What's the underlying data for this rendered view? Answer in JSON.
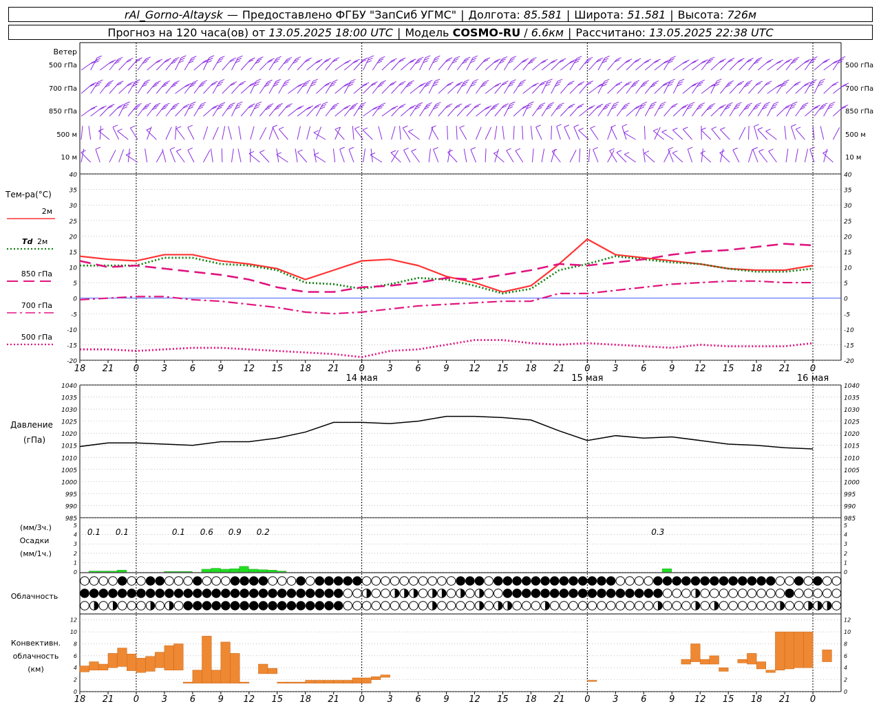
{
  "header": {
    "station": "rAl_Gorno-Altaysk",
    "dash": "—",
    "provider": "Предоставлено ФГБУ \"ЗапСиб УГМС\"",
    "lon_label": "Долгота:",
    "lon_value": "85.581",
    "lat_label": "Широта:",
    "lat_value": "51.581",
    "alt_label": "Высота:",
    "alt_value": "726м",
    "forecast_label": "Прогноз на 120 часа(ов)",
    "from_label": "от",
    "forecast_start": "13.05.2025 18:00 UTC",
    "model_label": "Модель",
    "model_name": "COSMO-RU",
    "model_res": "6.6км",
    "computed_label": "Рассчитано:",
    "computed_value": "13.05.2025 22:38 UTC"
  },
  "panels": {
    "wind": {
      "title": "Ветер",
      "levels": [
        "500 гПа",
        "700 гПа",
        "850 гПа",
        "500 м",
        "10 м"
      ],
      "color": "#8a2be2"
    },
    "temperature": {
      "title": "Тем-ра(°С)",
      "legend": [
        {
          "label": "2м",
          "color": "#ff3333",
          "style": "solid"
        },
        {
          "label": "Td",
          "label2": "2м",
          "color": "#108010",
          "style": "dotted"
        },
        {
          "label": "850 гПа",
          "color": "#e0147f",
          "style": "longdash"
        },
        {
          "label": "700 гПа",
          "color": "#e0147f",
          "style": "dashdot"
        },
        {
          "label": "500 гПа",
          "color": "#e0147f",
          "style": "dotted"
        }
      ]
    },
    "pressure": {
      "title": "Давление",
      "unit": "(гПа)"
    },
    "precip": {
      "unit1": "(мм/3ч.)",
      "title": "Осадки",
      "unit2": "(мм/1ч.)",
      "bar_color": "#22dd22"
    },
    "cloud": {
      "title": "Облачность"
    },
    "convective": {
      "title1": "Конвективн.",
      "title2": "облачность",
      "unit": "(км)",
      "bar_color": "#ee8833"
    }
  },
  "time_axis": {
    "hour_ticks": [
      "18",
      "21",
      "0",
      "3",
      "6",
      "9",
      "12",
      "15",
      "18",
      "21",
      "0",
      "3",
      "6",
      "9",
      "12",
      "15",
      "18",
      "21",
      "0",
      "3",
      "6",
      "9",
      "12",
      "15",
      "18",
      "21",
      "0"
    ],
    "day_labels": [
      "14 мая",
      "15 мая",
      "16 мая"
    ]
  },
  "chart_data": [
    {
      "type": "line",
      "title": "Тем-ра(°С)",
      "ylim": [
        -20,
        40
      ],
      "yticks": [
        40,
        35,
        30,
        25,
        20,
        15,
        10,
        5,
        0,
        -5,
        -10,
        -15,
        -20
      ],
      "x_hours": [
        0,
        3,
        6,
        9,
        12,
        15,
        18,
        21,
        24,
        27,
        30,
        33,
        36,
        39,
        42,
        45,
        48,
        51,
        54,
        57,
        60,
        63,
        66,
        69,
        72,
        75,
        78
      ],
      "series": [
        {
          "name": "2м",
          "values": [
            13.5,
            12.5,
            12,
            14,
            14,
            12,
            11,
            9.5,
            6,
            9,
            12,
            12.5,
            10.5,
            7,
            5,
            2,
            4,
            11,
            19,
            14,
            13,
            12,
            11,
            9.5,
            9,
            9,
            10.5
          ]
        },
        {
          "name": "Td 2м",
          "values": [
            10.5,
            10.5,
            10.5,
            13,
            13,
            11,
            10.5,
            9,
            5,
            4.5,
            3,
            4.5,
            6.5,
            6,
            4,
            1.5,
            3,
            9,
            11,
            13.5,
            12.5,
            11.5,
            11,
            9.5,
            8.5,
            8.5,
            9.5
          ]
        },
        {
          "name": "850 гПа",
          "values": [
            12,
            10,
            10.5,
            9.5,
            8.5,
            7.5,
            6,
            3.5,
            2,
            2,
            3.5,
            4,
            5,
            6.5,
            6,
            7.5,
            9,
            11,
            10.5,
            11.5,
            12.5,
            14,
            15,
            15.5,
            16.5,
            17.5,
            17
          ]
        },
        {
          "name": "700 гПа",
          "values": [
            -0.5,
            0,
            0.5,
            0.5,
            -0.5,
            -1,
            -2,
            -3,
            -4.5,
            -5,
            -4.5,
            -3.5,
            -2.5,
            -2,
            -1.5,
            -1,
            -1,
            1.5,
            1.5,
            2.5,
            3.5,
            4.5,
            5,
            5.5,
            5.5,
            5,
            5
          ]
        },
        {
          "name": "500 гПа",
          "values": [
            -16.5,
            -16.5,
            -17,
            -16.5,
            -16,
            -16,
            -16.5,
            -17,
            -17.5,
            -18,
            -19,
            -17,
            -16.5,
            -15,
            -13.5,
            -13.5,
            -14.5,
            -15,
            -14.5,
            -15,
            -15.5,
            -16,
            -15,
            -15.5,
            -15.5,
            -15.5,
            -14.5
          ]
        }
      ]
    },
    {
      "type": "line",
      "title": "Давление",
      "ylabel": "(гПа)",
      "ylim": [
        985,
        1040
      ],
      "yticks": [
        1040,
        1035,
        1030,
        1025,
        1020,
        1015,
        1010,
        1005,
        1000,
        995,
        990,
        985
      ],
      "x_hours": [
        0,
        3,
        6,
        9,
        12,
        15,
        18,
        21,
        24,
        27,
        30,
        33,
        36,
        39,
        42,
        45,
        48,
        51,
        54,
        57,
        60,
        63,
        66,
        69,
        72,
        75,
        78
      ],
      "series": [
        {
          "name": "Давление",
          "values": [
            1014.5,
            1016,
            1016,
            1015.5,
            1015,
            1016.5,
            1016.5,
            1018,
            1020.5,
            1024.5,
            1024.5,
            1024,
            1025,
            1027,
            1027,
            1026.5,
            1025.5,
            1021,
            1017,
            1019,
            1018,
            1018.5,
            1017,
            1015.5,
            1015,
            1014,
            1013.5
          ]
        }
      ]
    },
    {
      "type": "bar",
      "title": "Осадки",
      "ylim": [
        0,
        5
      ],
      "yticks": [
        5,
        4,
        3,
        2,
        1,
        0
      ],
      "labels_3h": [
        {
          "hour": 1.5,
          "text": "0.1"
        },
        {
          "hour": 4.5,
          "text": "0.1"
        },
        {
          "hour": 10.5,
          "text": "0.1"
        },
        {
          "hour": 13.5,
          "text": "0.6"
        },
        {
          "hour": 16.5,
          "text": "0.9"
        },
        {
          "hour": 19.5,
          "text": "0.2"
        },
        {
          "hour": 61.5,
          "text": "0.3"
        }
      ],
      "bars": [
        {
          "hour": 1,
          "value": 0.1
        },
        {
          "hour": 2,
          "value": 0.1
        },
        {
          "hour": 3,
          "value": 0.1
        },
        {
          "hour": 4,
          "value": 0.2
        },
        {
          "hour": 9,
          "value": 0.05
        },
        {
          "hour": 10,
          "value": 0.05
        },
        {
          "hour": 11,
          "value": 0.05
        },
        {
          "hour": 13,
          "value": 0.3
        },
        {
          "hour": 14,
          "value": 0.4
        },
        {
          "hour": 15,
          "value": 0.3
        },
        {
          "hour": 16,
          "value": 0.35
        },
        {
          "hour": 17,
          "value": 0.6
        },
        {
          "hour": 18,
          "value": 0.3
        },
        {
          "hour": 19,
          "value": 0.25
        },
        {
          "hour": 20,
          "value": 0.2
        },
        {
          "hour": 21,
          "value": 0.1
        },
        {
          "hour": 62,
          "value": 0.35
        }
      ]
    },
    {
      "type": "bar",
      "title": "Конвективн. облачность",
      "ylabel": "(км)",
      "ylim": [
        0,
        13
      ],
      "yticks": [
        12,
        10,
        8,
        6,
        4,
        2,
        0
      ],
      "bars": [
        {
          "hour": 0,
          "top": 4.3,
          "base": 3.3
        },
        {
          "hour": 1,
          "top": 5.0,
          "base": 3.6
        },
        {
          "hour": 2,
          "top": 4.6,
          "base": 3.6
        },
        {
          "hour": 3,
          "top": 6.4,
          "base": 4.0
        },
        {
          "hour": 4,
          "top": 7.3,
          "base": 4.2
        },
        {
          "hour": 5,
          "top": 6.3,
          "base": 3.5
        },
        {
          "hour": 6,
          "top": 5.6,
          "base": 3.2
        },
        {
          "hour": 7,
          "top": 5.9,
          "base": 3.4
        },
        {
          "hour": 8,
          "top": 6.6,
          "base": 4.0
        },
        {
          "hour": 9,
          "top": 7.7,
          "base": 3.6
        },
        {
          "hour": 10,
          "top": 8.0,
          "base": 3.6
        },
        {
          "hour": 11,
          "top": 1.6,
          "base": 1.4
        },
        {
          "hour": 12,
          "top": 3.6,
          "base": 1.4
        },
        {
          "hour": 13,
          "top": 9.3,
          "base": 1.4
        },
        {
          "hour": 14,
          "top": 3.6,
          "base": 1.4
        },
        {
          "hour": 15,
          "top": 8.3,
          "base": 1.4
        },
        {
          "hour": 16,
          "top": 6.4,
          "base": 1.4
        },
        {
          "hour": 17,
          "top": 1.6,
          "base": 1.4
        },
        {
          "hour": 19,
          "top": 4.6,
          "base": 3.0
        },
        {
          "hour": 20,
          "top": 3.9,
          "base": 3.0
        },
        {
          "hour": 21,
          "top": 1.6,
          "base": 1.4
        },
        {
          "hour": 22,
          "top": 1.6,
          "base": 1.4
        },
        {
          "hour": 23,
          "top": 1.6,
          "base": 1.4
        },
        {
          "hour": 24,
          "top": 1.9,
          "base": 1.4
        },
        {
          "hour": 25,
          "top": 1.9,
          "base": 1.4
        },
        {
          "hour": 26,
          "top": 1.9,
          "base": 1.4
        },
        {
          "hour": 27,
          "top": 1.9,
          "base": 1.4
        },
        {
          "hour": 28,
          "top": 1.9,
          "base": 1.4
        },
        {
          "hour": 29,
          "top": 2.3,
          "base": 1.4
        },
        {
          "hour": 30,
          "top": 2.3,
          "base": 1.4
        },
        {
          "hour": 31,
          "top": 2.5,
          "base": 2.0
        },
        {
          "hour": 32,
          "top": 2.8,
          "base": 2.4
        },
        {
          "hour": 54,
          "top": 1.9,
          "base": 1.7
        },
        {
          "hour": 64,
          "top": 5.4,
          "base": 4.6
        },
        {
          "hour": 65,
          "top": 8.0,
          "base": 5.0
        },
        {
          "hour": 66,
          "top": 5.4,
          "base": 4.6
        },
        {
          "hour": 67,
          "top": 6.0,
          "base": 4.6
        },
        {
          "hour": 68,
          "top": 4.0,
          "base": 3.4
        },
        {
          "hour": 70,
          "top": 5.4,
          "base": 4.8
        },
        {
          "hour": 71,
          "top": 6.4,
          "base": 4.6
        },
        {
          "hour": 72,
          "top": 5.0,
          "base": 3.8
        },
        {
          "hour": 73,
          "top": 3.6,
          "base": 3.2
        },
        {
          "hour": 74,
          "top": 10.0,
          "base": 3.6
        },
        {
          "hour": 75,
          "top": 10.0,
          "base": 3.8
        },
        {
          "hour": 76,
          "top": 10.0,
          "base": 4.0
        },
        {
          "hour": 77,
          "top": 10.0,
          "base": 4.0
        },
        {
          "hour": 79,
          "top": 7.0,
          "base": 5.0
        }
      ]
    }
  ]
}
